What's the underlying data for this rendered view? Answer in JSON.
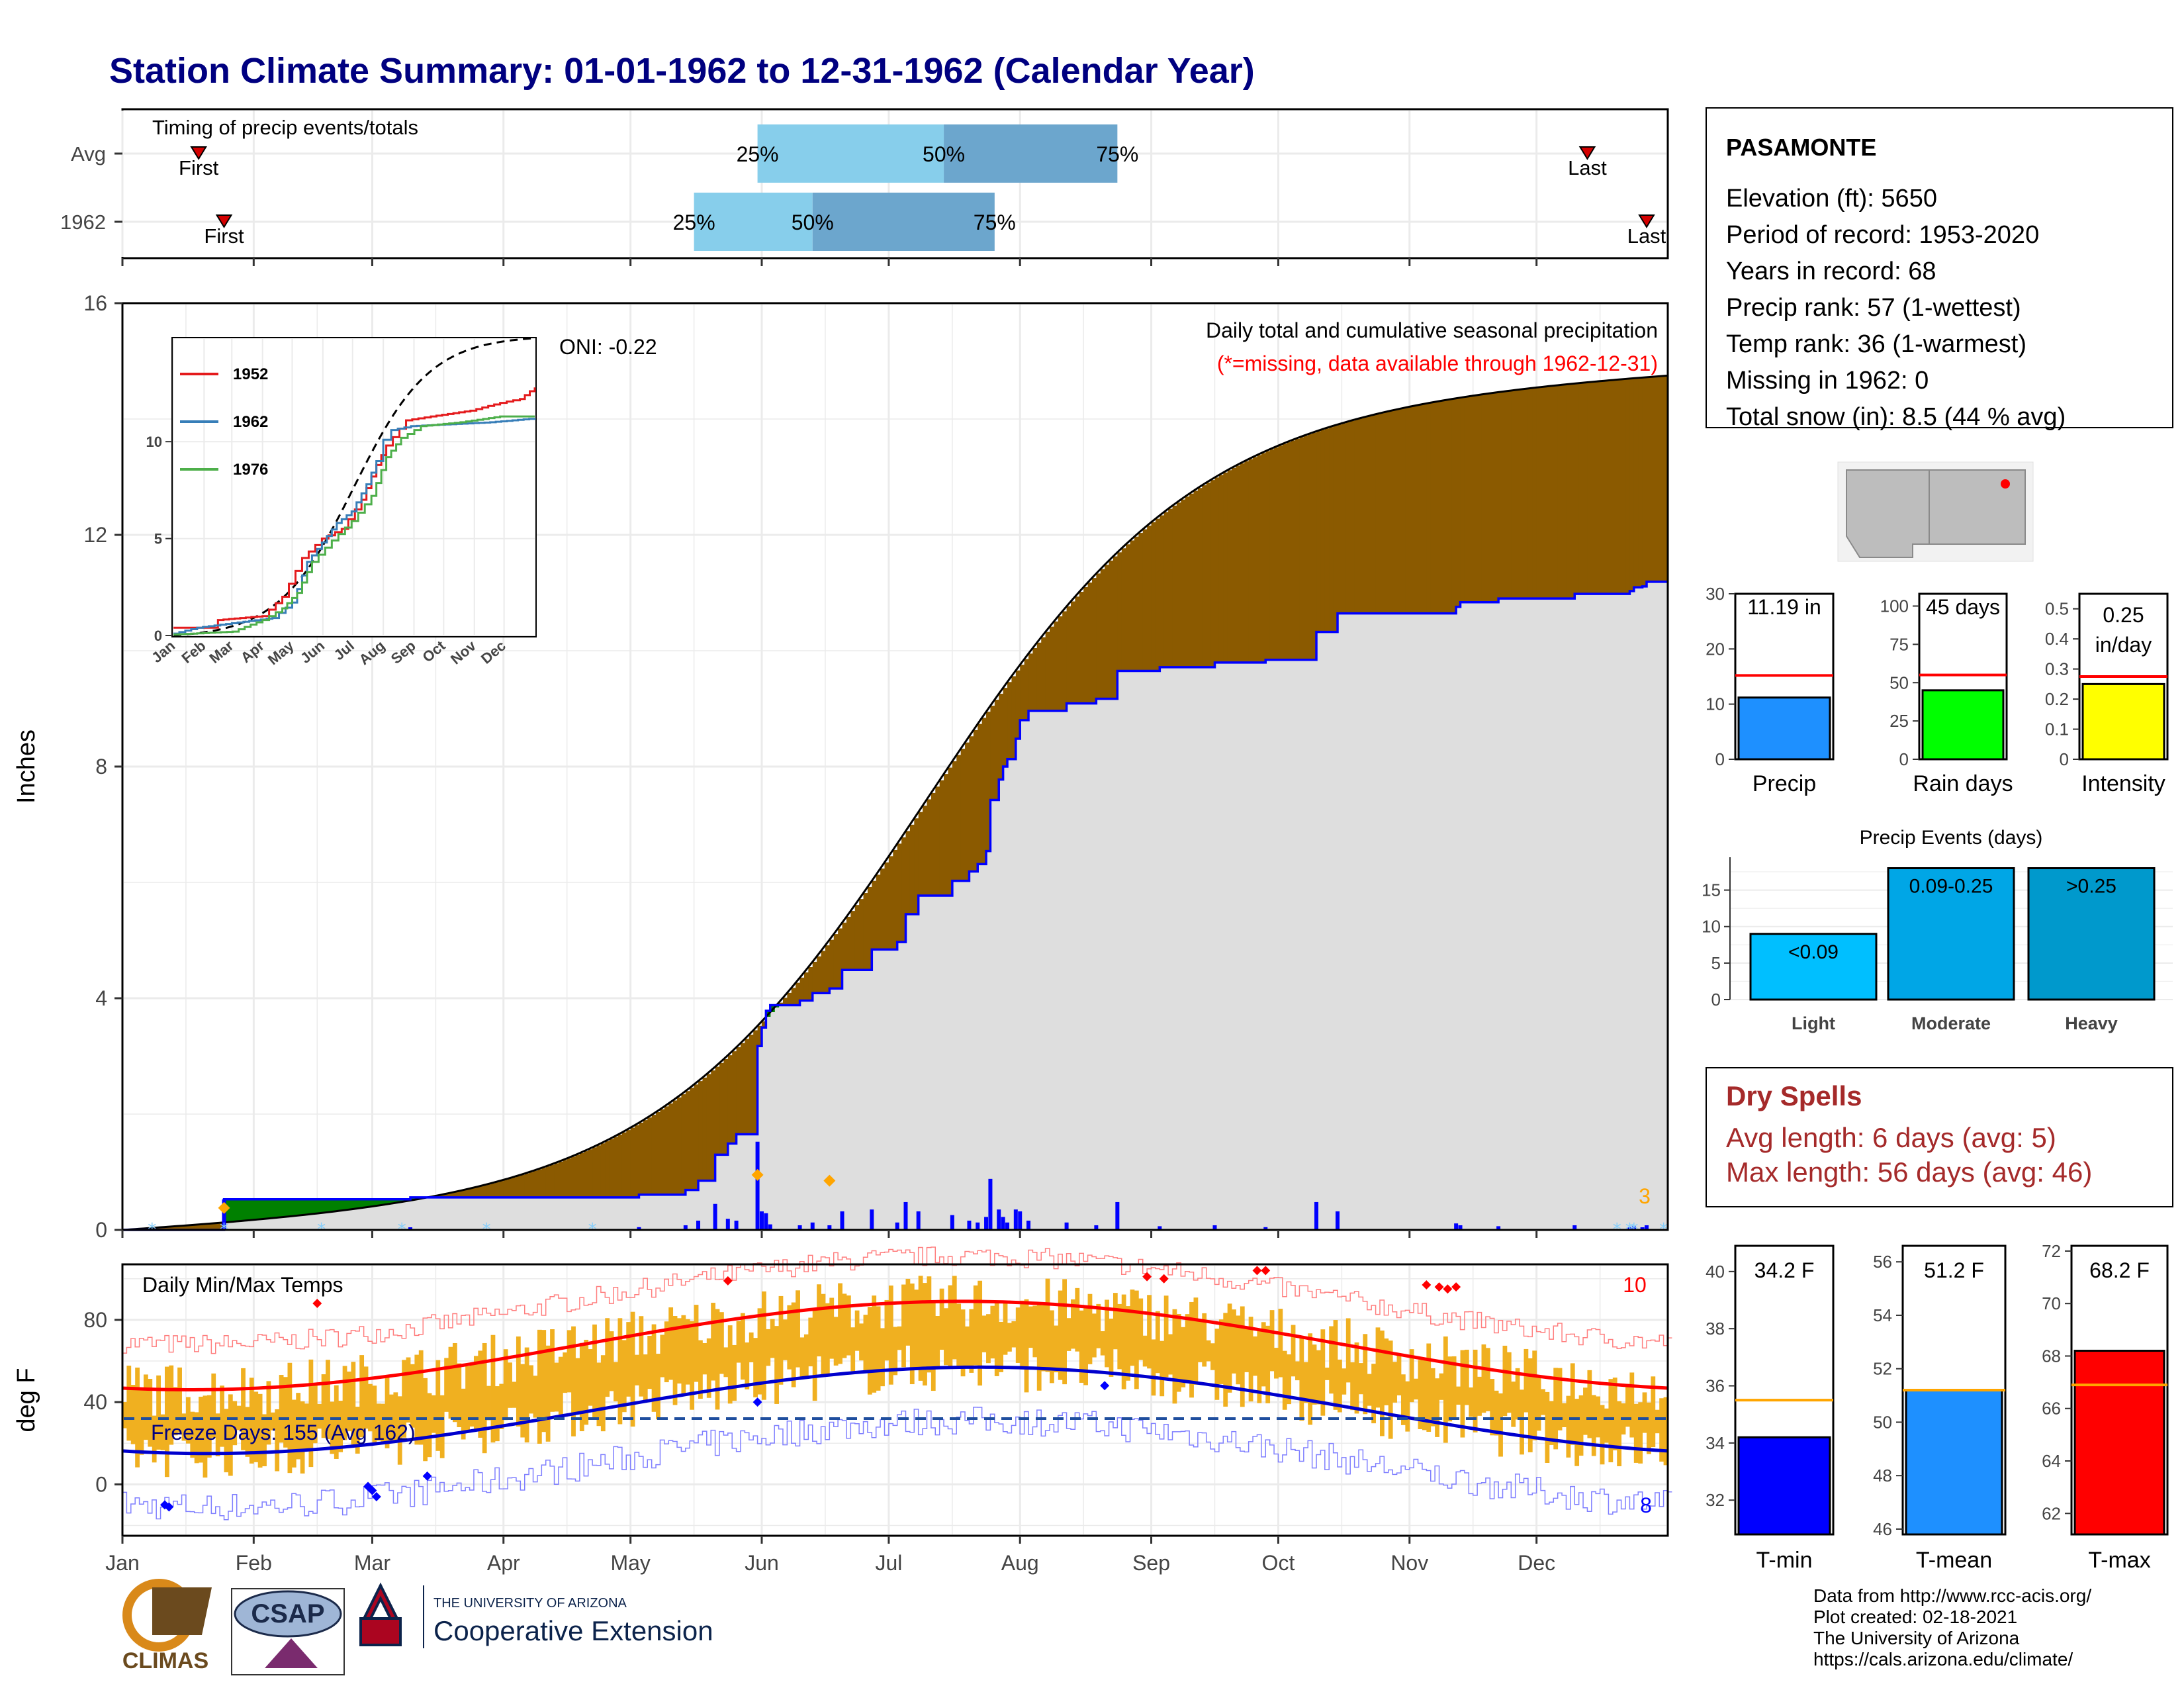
{
  "title": "Station Climate Summary: 01-01-1962 to 12-31-1962 (Calendar Year)",
  "months": [
    "Jan",
    "Feb",
    "Mar",
    "Apr",
    "May",
    "Jun",
    "Jul",
    "Aug",
    "Sep",
    "Oct",
    "Nov",
    "Dec"
  ],
  "timing": {
    "label": "Timing of precip events/totals",
    "rows": [
      {
        "name": "Avg",
        "first_label": "First",
        "last_label": "Last",
        "first_doy": 18,
        "last_doy": 346,
        "p25_doy": 150,
        "p50_doy": 194,
        "p75_doy": 235
      },
      {
        "name": "1962",
        "first_label": "First",
        "last_label": "Last",
        "first_doy": 24,
        "last_doy": 360,
        "p25_doy": 135,
        "p50_doy": 163,
        "p75_doy": 206
      }
    ],
    "pct_labels": [
      "25%",
      "50%",
      "75%"
    ]
  },
  "precip": {
    "ylabel": "Inches",
    "annotation_title": "Daily total and cumulative seasonal precipitation",
    "annotation_missing": "(*=missing, data available through 1962-12-31)",
    "oni": "ONI: -0.22",
    "corner_count": "3",
    "ylim": [
      0,
      16
    ],
    "yticks": [
      0,
      4,
      8,
      12,
      16
    ],
    "colors": {
      "above": "#008000",
      "below": "#8B5A00",
      "avg_fill": "#dedede",
      "obs_line": "#0000ff",
      "avg_line": "#000000"
    }
  },
  "inset": {
    "series": [
      {
        "name": "1952",
        "color": "#e41a1c"
      },
      {
        "name": "1962",
        "color": "#377eb8"
      },
      {
        "name": "1976",
        "color": "#4daf4a"
      }
    ],
    "yticks": [
      0,
      5,
      10
    ],
    "months": [
      "Jan",
      "Feb",
      "Mar",
      "Apr",
      "May",
      "Jun",
      "Jul",
      "Aug",
      "Sep",
      "Oct",
      "Nov",
      "Dec"
    ]
  },
  "temps": {
    "ylabel": "deg F",
    "label": "Daily Min/Max Temps",
    "freeze": "Freeze Days: 155 (Avg 162)",
    "record_high_count": "10",
    "record_low_count": "8",
    "yticks": [
      0,
      40,
      80
    ],
    "ylim": [
      -25,
      107
    ]
  },
  "station": {
    "name": "PASAMONTE",
    "lines": [
      "Elevation (ft): 5650",
      "Period of record: 1953-2020",
      "Years in record: 68",
      "Precip rank: 57 (1-wettest)",
      "Temp rank: 36 (1-warmest)",
      "Missing in 1962: 0",
      "Total snow (in): 8.5 (44 % avg)"
    ]
  },
  "summary_bars": [
    {
      "label": "Precip",
      "value_text": "11.19 in",
      "value": 11.19,
      "avg": 15.2,
      "max": 30,
      "ticks": [
        0,
        10,
        20,
        30
      ],
      "color": "#1e90ff"
    },
    {
      "label": "Rain days",
      "value_text": "45 days",
      "value": 45,
      "avg": 55,
      "max": 108,
      "ticks": [
        0,
        25,
        50,
        75,
        100
      ],
      "color": "#00ff00"
    },
    {
      "label": "Intensity",
      "value_text": "0.25 in/day",
      "value": 0.25,
      "avg": 0.275,
      "max": 0.55,
      "ticks": [
        0.0,
        0.1,
        0.2,
        0.3,
        0.4,
        0.5
      ],
      "color": "#ffff00"
    }
  ],
  "precip_events": {
    "title": "Precip Events (days)",
    "categories": [
      "Light",
      "Moderate",
      "Heavy"
    ],
    "bar_labels": [
      "<0.09",
      "0.09-0.25",
      ">0.25"
    ],
    "values": [
      9,
      18,
      18
    ],
    "ticks": [
      0,
      5,
      10,
      15
    ],
    "colors": [
      "#00bfff",
      "#00a6e6",
      "#0099cc"
    ]
  },
  "dry_spells": {
    "title": "Dry Spells",
    "avg": "Avg length: 6 days (avg: 5)",
    "max": "Max length: 56 days (avg: 46)"
  },
  "temp_bars": [
    {
      "label": "T-min",
      "value_text": "34.2 F",
      "value": 34.2,
      "avg": 35.5,
      "min": 30.8,
      "max": 40.9,
      "ticks": [
        32,
        34,
        36,
        38,
        40
      ],
      "color": "#0000ff"
    },
    {
      "label": "T-mean",
      "value_text": "51.2 F",
      "value": 51.2,
      "avg": 51.2,
      "min": 45.8,
      "max": 56.6,
      "ticks": [
        46,
        48,
        50,
        52,
        54,
        56
      ],
      "color": "#1e90ff"
    },
    {
      "label": "T-max",
      "value_text": "68.2 F",
      "value": 68.2,
      "avg": 66.9,
      "min": 61.2,
      "max": 72.2,
      "ticks": [
        62,
        64,
        66,
        68,
        70,
        72
      ],
      "color": "#ff0000"
    }
  ],
  "footer": {
    "credits": [
      "Data from http://www.rcc-acis.org/",
      "Plot created: 02-18-2021",
      "The University of Arizona",
      "https://cals.arizona.edu/climate/"
    ],
    "climas": "CLIMAS",
    "csap": "CSAP",
    "uofa_small": "THE UNIVERSITY OF ARIZONA",
    "coop": "Cooperative Extension"
  }
}
